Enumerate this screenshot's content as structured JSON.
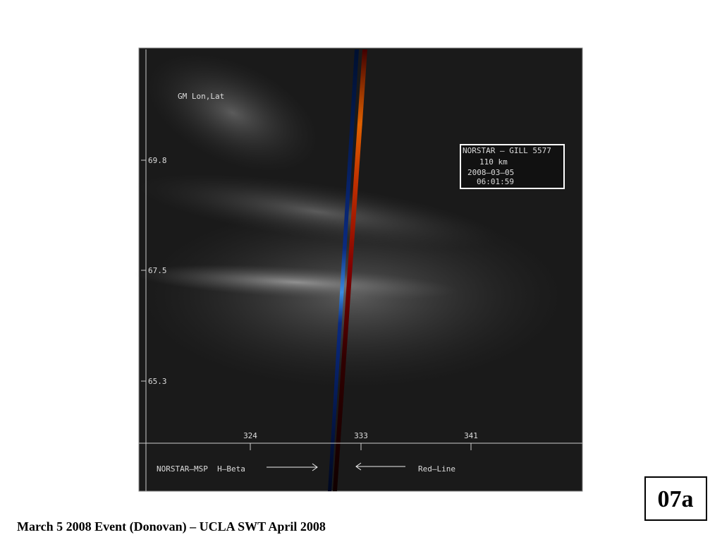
{
  "image": {
    "label": "GM Lon,Lat",
    "info_box": [
      "NORSTAR – GILL 5577",
      "110 km",
      "2008–03–05",
      "06:01:59"
    ],
    "lat_labels": [
      69.8,
      67.5,
      65.3
    ],
    "lon_labels": [
      324,
      333,
      341
    ],
    "left_legend": "NORSTAR–MSP  H–Beta",
    "right_legend": "Red–Line"
  },
  "slide_id": "07a",
  "caption": "March 5 2008 Event (Donovan) – UCLA SWT April 2008"
}
